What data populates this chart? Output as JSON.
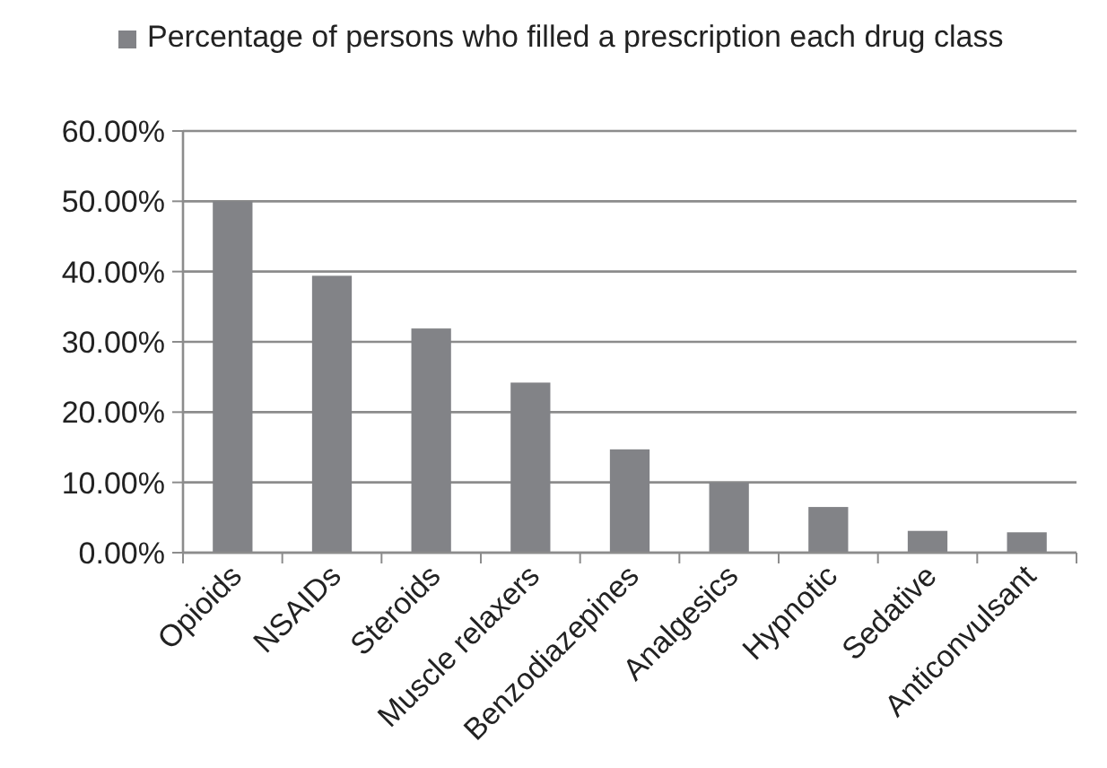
{
  "chart_data": {
    "type": "bar",
    "categories": [
      "Opioids",
      "NSAIDs",
      "Steroids",
      "Muscle relaxers",
      "Benzodiazepines",
      "Analgesics",
      "Hypnotic",
      "Sedative",
      "Anticonvulsant"
    ],
    "series": [
      {
        "name": "Percentage of persons who filled a prescription each drug class",
        "color": "#828387",
        "values": [
          50,
          39.4,
          31.9,
          24.2,
          14.7,
          10,
          6.5,
          3.1,
          2.9
        ]
      }
    ],
    "ylim": [
      0,
      60
    ],
    "yticks": [
      {
        "value": 0,
        "label": "0.00%"
      },
      {
        "value": 10,
        "label": "10.00%"
      },
      {
        "value": 20,
        "label": "20.00%"
      },
      {
        "value": 30,
        "label": "30.00%"
      },
      {
        "value": 40,
        "label": "40.00%"
      },
      {
        "value": 50,
        "label": "50.00%"
      },
      {
        "value": 60,
        "label": "60.00%"
      }
    ],
    "grid": "y",
    "legend": "top"
  }
}
